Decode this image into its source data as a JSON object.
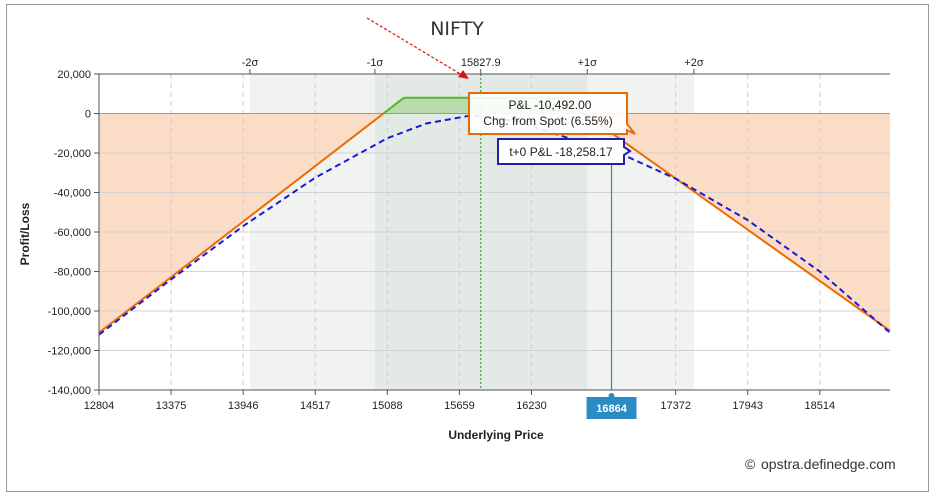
{
  "chart_data": {
    "type": "line",
    "title": "NIFTY",
    "xlabel": "Underlying Price",
    "ylabel": "Profit/Loss",
    "xlim": [
      12804,
      19070
    ],
    "ylim": [
      -140000,
      20000
    ],
    "x_ticks": [
      12804,
      13375,
      13946,
      14517,
      15088,
      15659,
      16230,
      17372,
      17943,
      18514
    ],
    "x_tick_labels": [
      "12804",
      "13375",
      "13946",
      "14517",
      "15088",
      "15659",
      "16230",
      "17372",
      "17943",
      "18514"
    ],
    "y_ticks": [
      20000,
      0,
      -20000,
      -40000,
      -60000,
      -80000,
      -100000,
      -120000,
      -140000
    ],
    "y_tick_labels": [
      "20,000",
      "0",
      "-20,000",
      "-40,000",
      "-60,000",
      "-80,000",
      "-100,000",
      "-120,000",
      "-140,000"
    ],
    "sigma_levels": [
      {
        "label": "-2σ",
        "value": 14000
      },
      {
        "label": "-1σ",
        "value": 14990
      },
      {
        "label": "15827.9",
        "value": 15828
      },
      {
        "label": "+1σ",
        "value": 16672
      },
      {
        "label": "+2σ",
        "value": 17517
      }
    ],
    "spot": 15828,
    "series": [
      {
        "key": "expiry",
        "color": "#ee6a00",
        "style": "solid",
        "points": [
          [
            12804,
            -111000
          ],
          [
            15220,
            8000
          ],
          [
            16470,
            8000
          ],
          [
            19070,
            -110000
          ]
        ]
      },
      {
        "key": "t0",
        "color": "#1a1ad6",
        "style": "dashed",
        "points": [
          [
            12804,
            -112000
          ],
          [
            13375,
            -84000
          ],
          [
            13946,
            -57000
          ],
          [
            14517,
            -32500
          ],
          [
            15088,
            -12500
          ],
          [
            15400,
            -5000
          ],
          [
            15750,
            -1000
          ],
          [
            16100,
            -3800
          ],
          [
            16500,
            -12000
          ],
          [
            16864,
            -18258
          ],
          [
            17372,
            -33000
          ],
          [
            17943,
            -54000
          ],
          [
            18514,
            -80000
          ],
          [
            19070,
            -111000
          ]
        ]
      }
    ],
    "marker": {
      "x": 16864,
      "x_label": "16864",
      "pnl_label": "P&L -10,492.00",
      "pnl_value": -10492,
      "chg_label": "Chg. from Spot: (6.55%)",
      "t0_label": "t+0 P&L -18,258.17",
      "t0_value": -18258.17,
      "colors": {
        "pnl": "#e36c0a",
        "t0": "#1f1fa8",
        "badge": "#2b8cc4"
      }
    },
    "profit_color": "#58b327",
    "loss_fill": "#fbdcc6",
    "grid": true
  },
  "credit": {
    "symbol": "©",
    "text": "opstra.definedge.com"
  }
}
